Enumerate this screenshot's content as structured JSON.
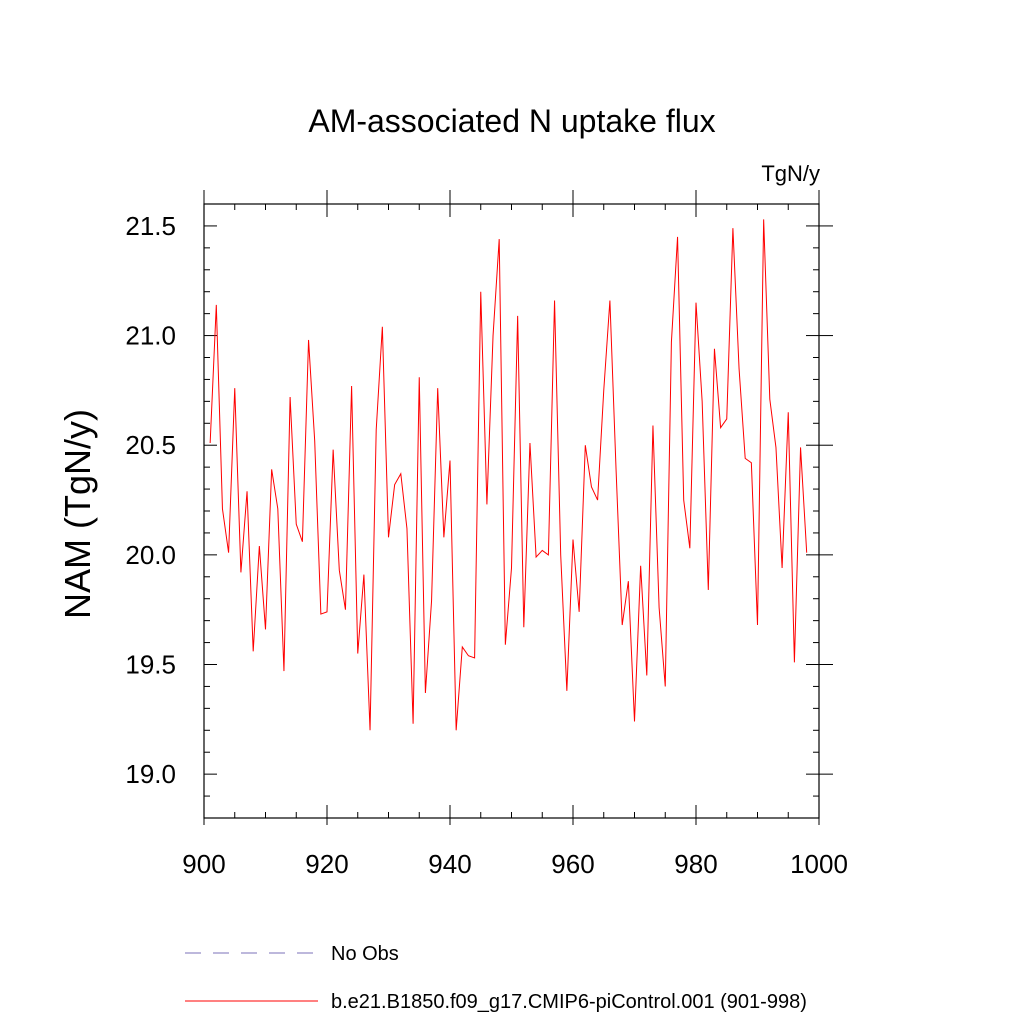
{
  "chart_data": {
    "type": "line",
    "title": "AM-associated N uptake flux",
    "units_label": "TgN/y",
    "xlabel": "",
    "ylabel": "NAM  (TgN/y)",
    "xlim": [
      900,
      1000
    ],
    "ylim": [
      18.8,
      21.6
    ],
    "x_ticks": [
      900,
      920,
      940,
      960,
      980,
      1000
    ],
    "x_tick_labels": [
      "900",
      "920",
      "940",
      "960",
      "980",
      "1000"
    ],
    "y_ticks": [
      19.0,
      19.5,
      20.0,
      20.5,
      21.0,
      21.5
    ],
    "y_tick_labels": [
      "19.0",
      "19.5",
      "20.0",
      "20.5",
      "21.0",
      "21.5"
    ],
    "grid": false,
    "legend_position": "bottom",
    "series": [
      {
        "name": "b.e21.B1850.f09_g17.CMIP6-piControl.001 (901-998)",
        "color": "#ff0000",
        "style": "solid",
        "x": [
          901,
          902,
          903,
          904,
          905,
          906,
          907,
          908,
          909,
          910,
          911,
          912,
          913,
          914,
          915,
          916,
          917,
          918,
          919,
          920,
          921,
          922,
          923,
          924,
          925,
          926,
          927,
          928,
          929,
          930,
          931,
          932,
          933,
          934,
          935,
          936,
          937,
          938,
          939,
          940,
          941,
          942,
          943,
          944,
          945,
          946,
          947,
          948,
          949,
          950,
          951,
          952,
          953,
          954,
          955,
          956,
          957,
          958,
          959,
          960,
          961,
          962,
          963,
          964,
          965,
          966,
          967,
          968,
          969,
          970,
          971,
          972,
          973,
          974,
          975,
          976,
          977,
          978,
          979,
          980,
          981,
          982,
          983,
          984,
          985,
          986,
          987,
          988,
          989,
          990,
          991,
          992,
          993,
          994,
          995,
          996,
          997,
          998
        ],
        "values": [
          20.51,
          21.14,
          20.21,
          20.01,
          20.76,
          19.92,
          20.29,
          19.56,
          20.04,
          19.66,
          20.39,
          20.21,
          19.47,
          20.72,
          20.14,
          20.06,
          20.98,
          20.52,
          19.73,
          19.74,
          20.48,
          19.93,
          19.75,
          20.77,
          19.55,
          19.91,
          19.2,
          20.57,
          21.04,
          20.08,
          20.32,
          20.37,
          20.12,
          19.23,
          20.81,
          19.37,
          19.79,
          20.76,
          20.08,
          20.43,
          19.2,
          19.58,
          19.54,
          19.53,
          21.2,
          20.23,
          21.0,
          21.44,
          19.59,
          19.94,
          21.09,
          19.67,
          20.51,
          19.99,
          20.02,
          20.0,
          21.16,
          20.0,
          19.38,
          20.07,
          19.74,
          20.5,
          20.31,
          20.25,
          20.75,
          21.16,
          20.39,
          19.68,
          19.88,
          19.24,
          19.95,
          19.45,
          20.59,
          19.76,
          19.4,
          20.97,
          21.45,
          20.25,
          20.03,
          21.15,
          20.7,
          19.84,
          20.94,
          20.58,
          20.62,
          21.49,
          20.85,
          20.44,
          20.42,
          19.68,
          21.53,
          20.71,
          20.49,
          19.94,
          20.65,
          19.51,
          20.49,
          20.01
        ]
      }
    ],
    "legend": [
      {
        "label": "No Obs",
        "color": "#7b70b8",
        "style": "dashed"
      },
      {
        "label": "b.e21.B1850.f09_g17.CMIP6-piControl.001 (901-998)",
        "color": "#ff0000",
        "style": "solid"
      }
    ]
  }
}
